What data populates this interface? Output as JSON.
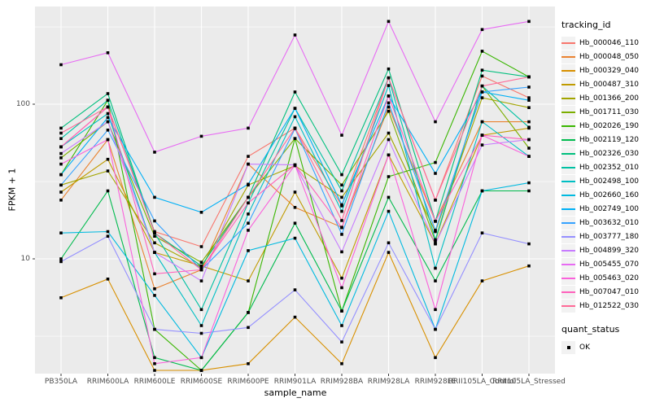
{
  "chart_data": {
    "type": "line",
    "title": "",
    "xlabel": "sample_name",
    "ylabel": "FPKM + 1",
    "y_scale": "log10",
    "y_ticks": [
      100,
      10
    ],
    "y_minor": [
      316,
      31.6,
      3.16
    ],
    "ylim": [
      1.8,
      430
    ],
    "grid": "on",
    "panel_color": "#ebebeb",
    "gridline_color": "#ffffff",
    "point_shape": "filled-square",
    "point_color": "#000000",
    "legend_position": "right",
    "legend": {
      "color_title": "tracking_id",
      "shape_title": "quant_status",
      "shape_items": [
        {
          "label": "OK"
        }
      ]
    },
    "categories": [
      "PB350LA",
      "RRIM600LA",
      "RRIM600LE",
      "RRIM600SE",
      "RRIM600PE",
      "RRIM901LA",
      "RRIM928BA",
      "RRIM928LA",
      "RRIM928LE",
      "RRII105LA_Control",
      "RRII105LA_Stressed"
    ],
    "series": [
      {
        "name": "Hb_000046_110",
        "color": "#F8766D",
        "values": [
          53,
          96,
          15,
          12,
          46,
          70,
          22,
          148,
          24,
          152,
          110
        ]
      },
      {
        "name": "Hb_000048_050",
        "color": "#EA8331",
        "values": [
          24,
          59,
          6.4,
          8.5,
          41,
          21.5,
          16,
          96,
          17.5,
          77,
          77
        ]
      },
      {
        "name": "Hb_000329_040",
        "color": "#D89000",
        "values": [
          5.6,
          7.4,
          1.9,
          1.9,
          2.1,
          4.2,
          2.1,
          11,
          2.3,
          7.2,
          9
        ]
      },
      {
        "name": "Hb_000487_310",
        "color": "#C09B00",
        "values": [
          27,
          44,
          11,
          9,
          7.2,
          27,
          7.5,
          47,
          12.5,
          63,
          70
        ]
      },
      {
        "name": "Hb_001366_200",
        "color": "#A3A500",
        "values": [
          30,
          37,
          12.7,
          8.8,
          30,
          40,
          25,
          65,
          15,
          110,
          95
        ]
      },
      {
        "name": "Hb_001711_030",
        "color": "#7CAE00",
        "values": [
          45,
          77,
          14,
          9.5,
          25,
          60,
          30,
          90,
          13,
          131,
          52
        ]
      },
      {
        "name": "Hb_002026_190",
        "color": "#39B600",
        "values": [
          35,
          106,
          3.5,
          1.9,
          4.5,
          60,
          4.6,
          34,
          42,
          220,
          150
        ]
      },
      {
        "name": "Hb_002119_120",
        "color": "#00BB4E",
        "values": [
          10,
          27.5,
          2.3,
          1.9,
          4.5,
          17,
          4.6,
          25,
          7.2,
          27.5,
          27.5
        ]
      },
      {
        "name": "Hb_002326_030",
        "color": "#00BF7D",
        "values": [
          70,
          117,
          14.7,
          9,
          25,
          120,
          35,
          169,
          17.5,
          166,
          150
        ]
      },
      {
        "name": "Hb_002352_010",
        "color": "#00C1A3",
        "values": [
          60,
          106,
          14.7,
          4.7,
          23,
          94,
          27.5,
          148,
          13.3,
          131,
          71
        ]
      },
      {
        "name": "Hb_002498_100",
        "color": "#00BFC4",
        "values": [
          53,
          87,
          11,
          3.7,
          19.5,
          83,
          20.3,
          132,
          8.7,
          77,
          46
        ]
      },
      {
        "name": "Hb_002660_160",
        "color": "#00BAE0",
        "values": [
          14.7,
          15,
          5.8,
          2.3,
          11.3,
          13.6,
          3.7,
          20.3,
          3.5,
          27.5,
          31
        ]
      },
      {
        "name": "Hb_002749_100",
        "color": "#00B0F6",
        "values": [
          35,
          82,
          25,
          20,
          30.4,
          94,
          22.4,
          113,
          35.7,
          120,
          106
        ]
      },
      {
        "name": "Hb_003632_010",
        "color": "#35A2FF",
        "values": [
          30,
          68,
          17.6,
          8.5,
          17,
          69.5,
          14.4,
          102,
          15.3,
          120,
          129
        ]
      },
      {
        "name": "Hb_003777_180",
        "color": "#9590FF",
        "values": [
          9.6,
          14,
          3.5,
          3.3,
          3.6,
          6.3,
          2.9,
          12.7,
          3.5,
          14.7,
          12.5
        ]
      },
      {
        "name": "Hb_004899_320",
        "color": "#C77CFF",
        "values": [
          48,
          77,
          11,
          7.2,
          41,
          40.5,
          11.1,
          59,
          12.5,
          54.5,
          59
        ]
      },
      {
        "name": "Hb_005455_070",
        "color": "#E76BF3",
        "values": [
          180,
          215,
          49,
          62,
          70,
          280,
          63,
          343,
          77,
          304,
          343
        ]
      },
      {
        "name": "Hb_005463_020",
        "color": "#FA62DB",
        "values": [
          41,
          59,
          2.1,
          2.3,
          15.3,
          40.5,
          6.5,
          47,
          4.7,
          63,
          46
        ]
      },
      {
        "name": "Hb_007047_010",
        "color": "#FF62BC",
        "values": [
          53,
          96,
          8,
          8.5,
          23,
          40.5,
          15.9,
          113,
          17.5,
          63,
          59
        ]
      },
      {
        "name": "Hb_012522_030",
        "color": "#FF6A98",
        "values": [
          65,
          96,
          14.7,
          8.5,
          25,
          70,
          17.7,
          148,
          24,
          131,
          150
        ]
      }
    ]
  }
}
